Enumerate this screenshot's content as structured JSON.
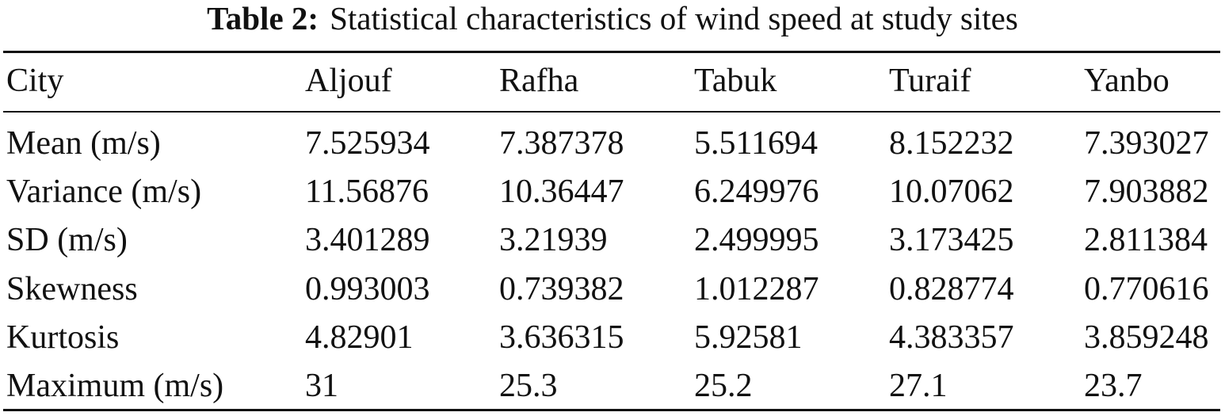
{
  "caption": {
    "label": "Table 2:",
    "text": "Statistical characteristics of wind speed at study sites"
  },
  "table": {
    "header": [
      "City",
      "Aljouf",
      "Rafha",
      "Tabuk",
      "Turaif",
      "Yanbo"
    ],
    "rows": [
      [
        "Mean (m/s)",
        "7.525934",
        "7.387378",
        "5.511694",
        "8.152232",
        "7.393027"
      ],
      [
        "Variance (m/s)",
        "11.56876",
        "10.36447",
        "6.249976",
        "10.07062",
        "7.903882"
      ],
      [
        "SD (m/s)",
        "3.401289",
        "3.21939",
        "2.499995",
        "3.173425",
        "2.811384"
      ],
      [
        "Skewness",
        "0.993003",
        "0.739382",
        "1.012287",
        "0.828774",
        "0.770616"
      ],
      [
        "Kurtosis",
        "4.82901",
        "3.636315",
        "5.92581",
        "4.383357",
        "3.859248"
      ],
      [
        "Maximum (m/s)",
        "31",
        "25.3",
        "25.2",
        "27.1",
        "23.7"
      ]
    ]
  }
}
